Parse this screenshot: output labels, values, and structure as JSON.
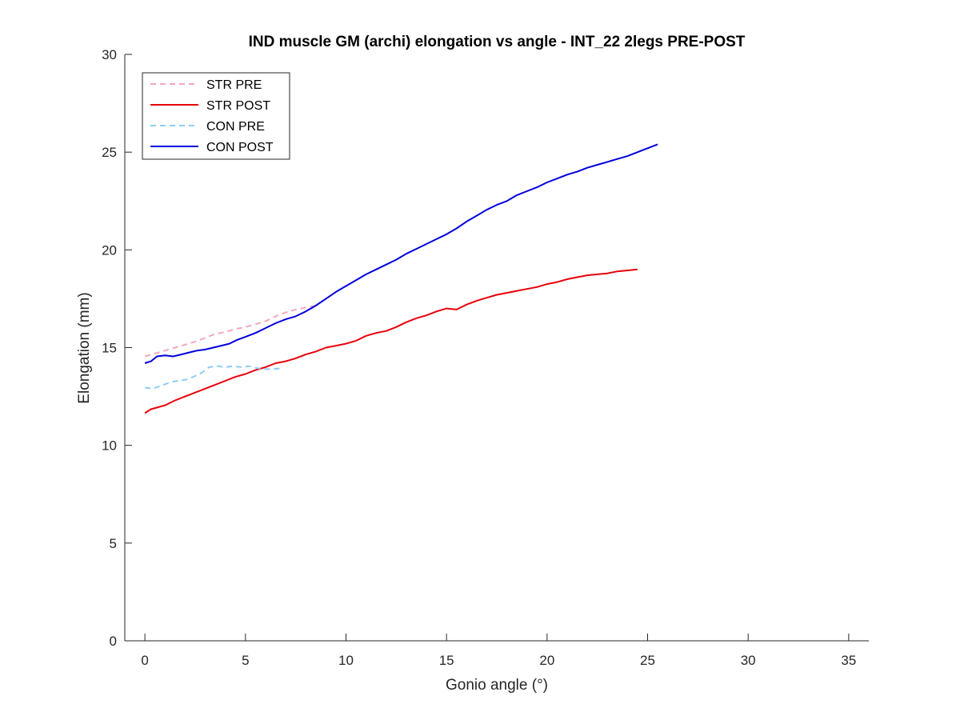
{
  "chart_data": {
    "type": "line",
    "title": "IND muscle GM (archi) elongation vs angle - INT_22 2legs PRE-POST",
    "xlabel": "Gonio angle (°)",
    "ylabel": "Elongation (mm)",
    "xlim": [
      -1,
      36
    ],
    "ylim": [
      0,
      30
    ],
    "xticks": [
      0,
      5,
      10,
      15,
      20,
      25,
      30,
      35
    ],
    "yticks": [
      0,
      5,
      10,
      15,
      20,
      25,
      30
    ],
    "xtick_labels": [
      "0",
      "5",
      "10",
      "15",
      "20",
      "25",
      "30",
      "35"
    ],
    "ytick_labels": [
      "0",
      "5",
      "10",
      "15",
      "20",
      "25",
      "30"
    ],
    "grid": false,
    "legend_position": "top-left",
    "series": [
      {
        "name": "STR PRE",
        "color": "#f4a6be",
        "style": "dashed",
        "x": [
          0,
          0.5,
          1,
          1.5,
          2,
          2.5,
          3,
          3.5,
          4,
          4.5,
          5,
          5.5,
          6,
          6.5,
          7,
          7.5,
          8,
          8.5
        ],
        "y": [
          14.55,
          14.7,
          14.85,
          15.0,
          15.15,
          15.3,
          15.5,
          15.7,
          15.8,
          15.95,
          16.05,
          16.2,
          16.35,
          16.6,
          16.8,
          16.95,
          17.05,
          17.15
        ]
      },
      {
        "name": "STR POST",
        "color": "#e8000b",
        "style": "solid",
        "x": [
          0,
          0.3,
          1,
          1.5,
          2,
          2.5,
          3,
          3.5,
          4,
          4.5,
          5,
          5.5,
          6,
          6.5,
          7,
          7.5,
          8,
          8.5,
          9,
          9.5,
          10,
          10.5,
          11,
          11.5,
          12,
          12.5,
          13,
          13.5,
          14,
          14.5,
          15,
          15.5,
          16,
          16.5,
          17,
          17.5,
          18,
          18.5,
          19,
          19.5,
          20,
          20.5,
          21,
          21.5,
          22,
          22.5,
          23,
          23.5,
          24,
          24.5
        ],
        "y": [
          11.65,
          11.85,
          12.05,
          12.3,
          12.5,
          12.7,
          12.9,
          13.1,
          13.3,
          13.5,
          13.65,
          13.85,
          14.0,
          14.2,
          14.3,
          14.45,
          14.65,
          14.8,
          15.0,
          15.1,
          15.2,
          15.35,
          15.6,
          15.75,
          15.85,
          16.05,
          16.3,
          16.5,
          16.65,
          16.85,
          17.0,
          16.95,
          17.2,
          17.4,
          17.55,
          17.7,
          17.8,
          17.9,
          18.0,
          18.1,
          18.25,
          18.35,
          18.5,
          18.6,
          18.7,
          18.75,
          18.8,
          18.9,
          18.95,
          19.0
        ]
      },
      {
        "name": "CON PRE",
        "color": "#8ecdf5",
        "style": "dashed",
        "x": [
          0,
          0.4,
          0.8,
          1.2,
          1.6,
          2.0,
          2.4,
          2.8,
          3.2,
          3.6,
          4.0,
          4.4,
          4.8,
          5.2,
          5.6,
          6.0,
          6.4,
          6.8
        ],
        "y": [
          12.95,
          12.9,
          13.05,
          13.2,
          13.3,
          13.35,
          13.5,
          13.7,
          14.0,
          14.05,
          14.0,
          14.05,
          14.0,
          14.05,
          13.95,
          13.9,
          13.9,
          13.95
        ]
      },
      {
        "name": "CON POST",
        "color": "#0000dd",
        "style": "solid",
        "x": [
          0,
          0.3,
          0.6,
          1,
          1.4,
          1.8,
          2.2,
          2.6,
          3,
          3.4,
          3.8,
          4.2,
          4.6,
          5,
          5.5,
          6,
          6.5,
          7,
          7.5,
          8,
          8.5,
          9,
          9.5,
          10,
          10.5,
          11,
          11.5,
          12,
          12.5,
          13,
          13.5,
          14,
          14.5,
          15,
          15.5,
          16,
          16.5,
          17,
          17.5,
          18,
          18.5,
          19,
          19.5,
          20,
          20.5,
          21,
          21.5,
          22,
          22.5,
          23,
          23.5,
          24,
          24.5,
          25,
          25.5
        ],
        "y": [
          14.2,
          14.3,
          14.55,
          14.6,
          14.55,
          14.65,
          14.75,
          14.85,
          14.9,
          15.0,
          15.1,
          15.2,
          15.4,
          15.55,
          15.75,
          16.0,
          16.25,
          16.45,
          16.6,
          16.85,
          17.15,
          17.5,
          17.85,
          18.15,
          18.45,
          18.75,
          19.0,
          19.25,
          19.5,
          19.8,
          20.05,
          20.3,
          20.55,
          20.8,
          21.1,
          21.45,
          21.75,
          22.05,
          22.3,
          22.5,
          22.8,
          23.0,
          23.2,
          23.45,
          23.65,
          23.85,
          24.0,
          24.2,
          24.35,
          24.5,
          24.65,
          24.8,
          25.0,
          25.2,
          25.4
        ]
      }
    ]
  }
}
